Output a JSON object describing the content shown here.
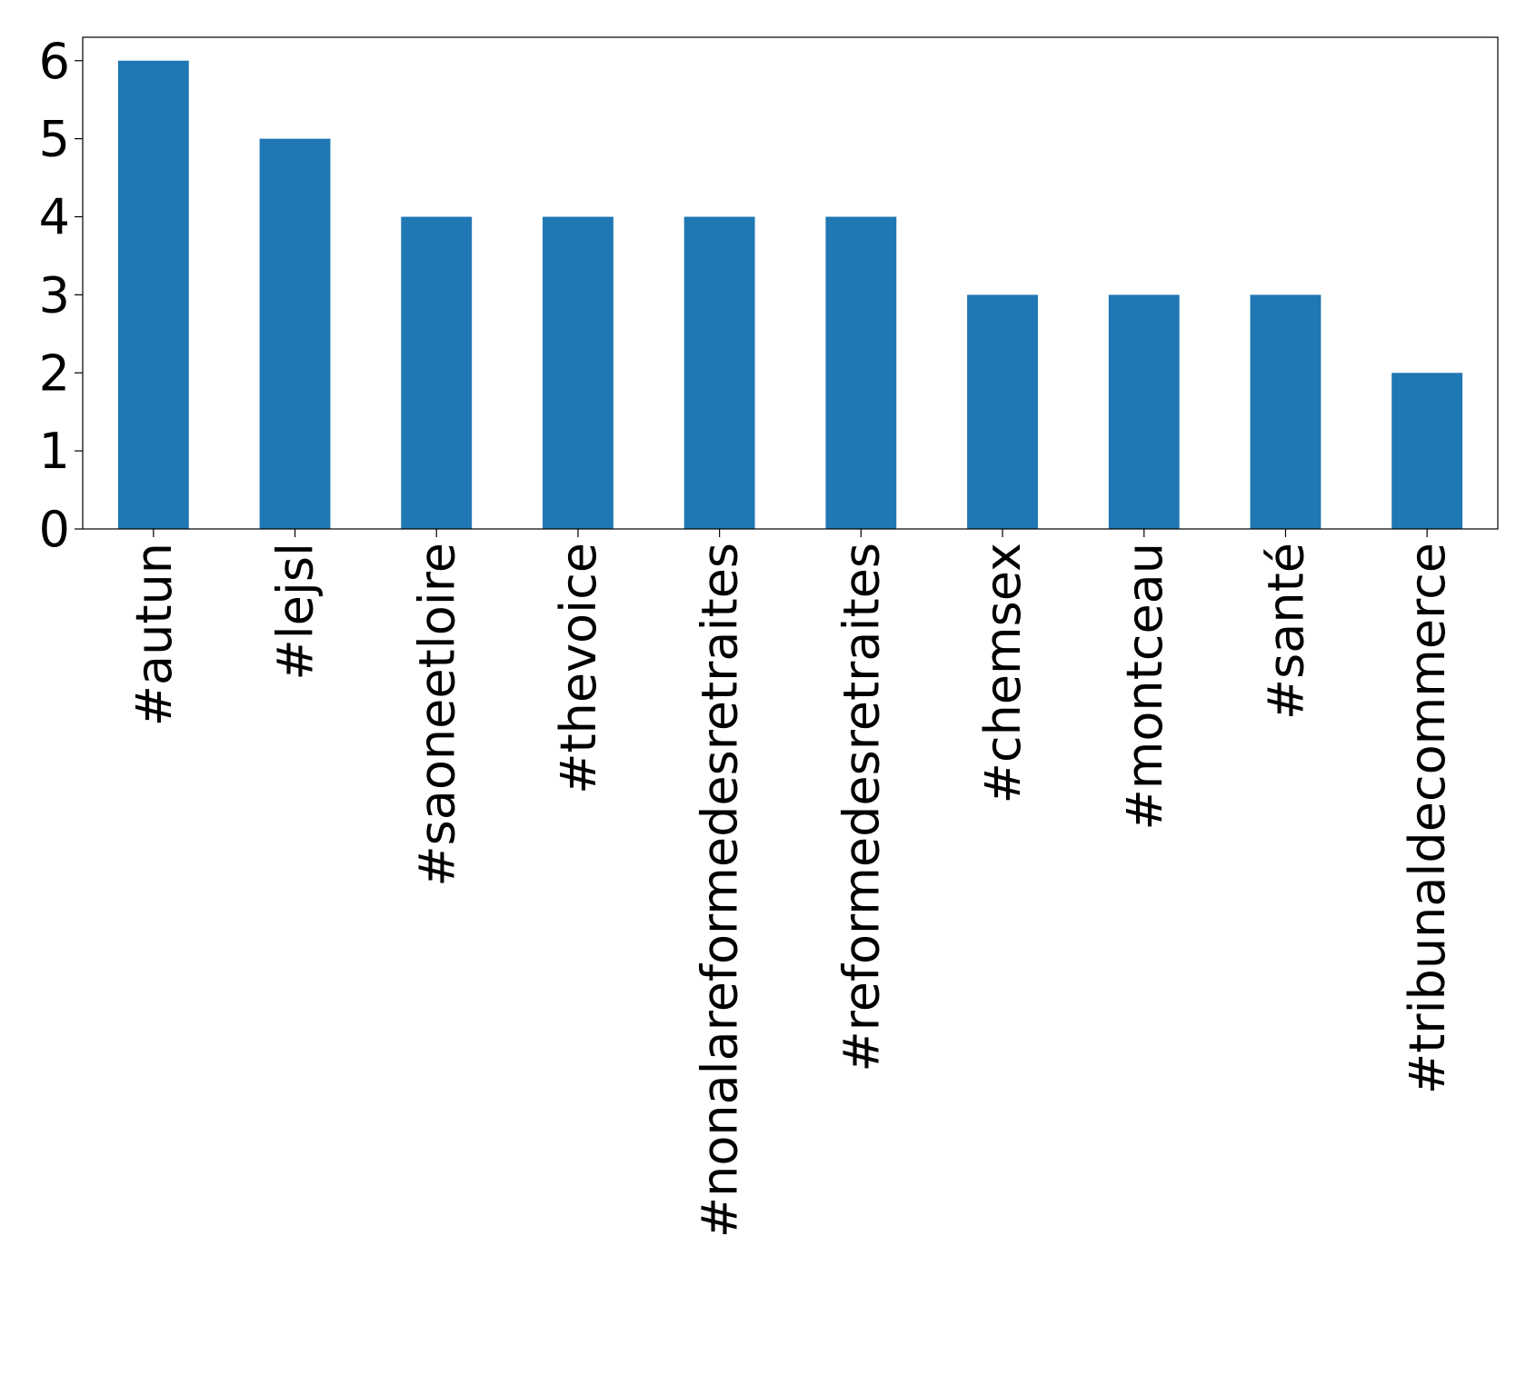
{
  "chart_data": {
    "type": "bar",
    "categories": [
      "#autun",
      "#lejsl",
      "#saoneetloire",
      "#thevoice",
      "#nonalareformedesretraites",
      "#reformedesretraites",
      "#chemsex",
      "#montceau",
      "#santé",
      "#tribunaldecommerce"
    ],
    "values": [
      6,
      5,
      4,
      4,
      4,
      4,
      3,
      3,
      3,
      2
    ],
    "color": "#1f77b4",
    "ylim": [
      0,
      6.3
    ],
    "yticks": [
      0,
      1,
      2,
      3,
      4,
      5,
      6
    ],
    "grid": false
  }
}
